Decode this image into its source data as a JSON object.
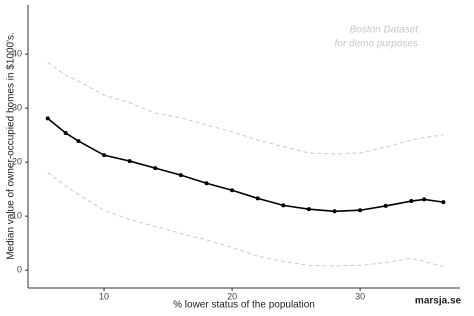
{
  "chart_data": {
    "type": "line",
    "x_label": "% lower status of the population",
    "y_label": "Median value of owner-occupied homes in $1000's.",
    "annotations": [
      "Boston Dataset",
      "for demo purposes"
    ],
    "caption": "marsja.se",
    "x": [
      5.6,
      7,
      8,
      10,
      12,
      14,
      16,
      18,
      20,
      22,
      24,
      26,
      28,
      30,
      32,
      34,
      35,
      36.5
    ],
    "series": [
      {
        "color": "#000000",
        "dash": false,
        "markers": true,
        "values": [
          28.1,
          25.4,
          23.9,
          21.3,
          20.2,
          18.9,
          17.6,
          16.1,
          14.8,
          13.3,
          12.0,
          11.3,
          10.9,
          11.1,
          11.9,
          12.8,
          13.1,
          12.6
        ]
      },
      {
        "color": "#cccccc",
        "dash": true,
        "markers": false,
        "values": [
          38.5,
          36.1,
          35.0,
          32.4,
          31.0,
          29.1,
          28.2,
          26.9,
          25.6,
          24.1,
          22.9,
          21.7,
          21.5,
          21.7,
          22.8,
          24.1,
          24.6,
          25.0
        ]
      },
      {
        "color": "#cccccc",
        "dash": true,
        "markers": false,
        "values": [
          18.1,
          15.6,
          14.0,
          11.1,
          9.4,
          8.1,
          6.8,
          5.6,
          4.2,
          2.6,
          1.6,
          0.9,
          0.8,
          0.9,
          1.4,
          2.2,
          1.6,
          0.7
        ]
      }
    ],
    "xlim": [
      4.06,
      37.8
    ],
    "xticks": [
      10,
      20,
      30
    ],
    "ylim": [
      -3.3,
      49.1
    ],
    "yticks": [
      0,
      10,
      20,
      30,
      40
    ],
    "grid": false
  }
}
